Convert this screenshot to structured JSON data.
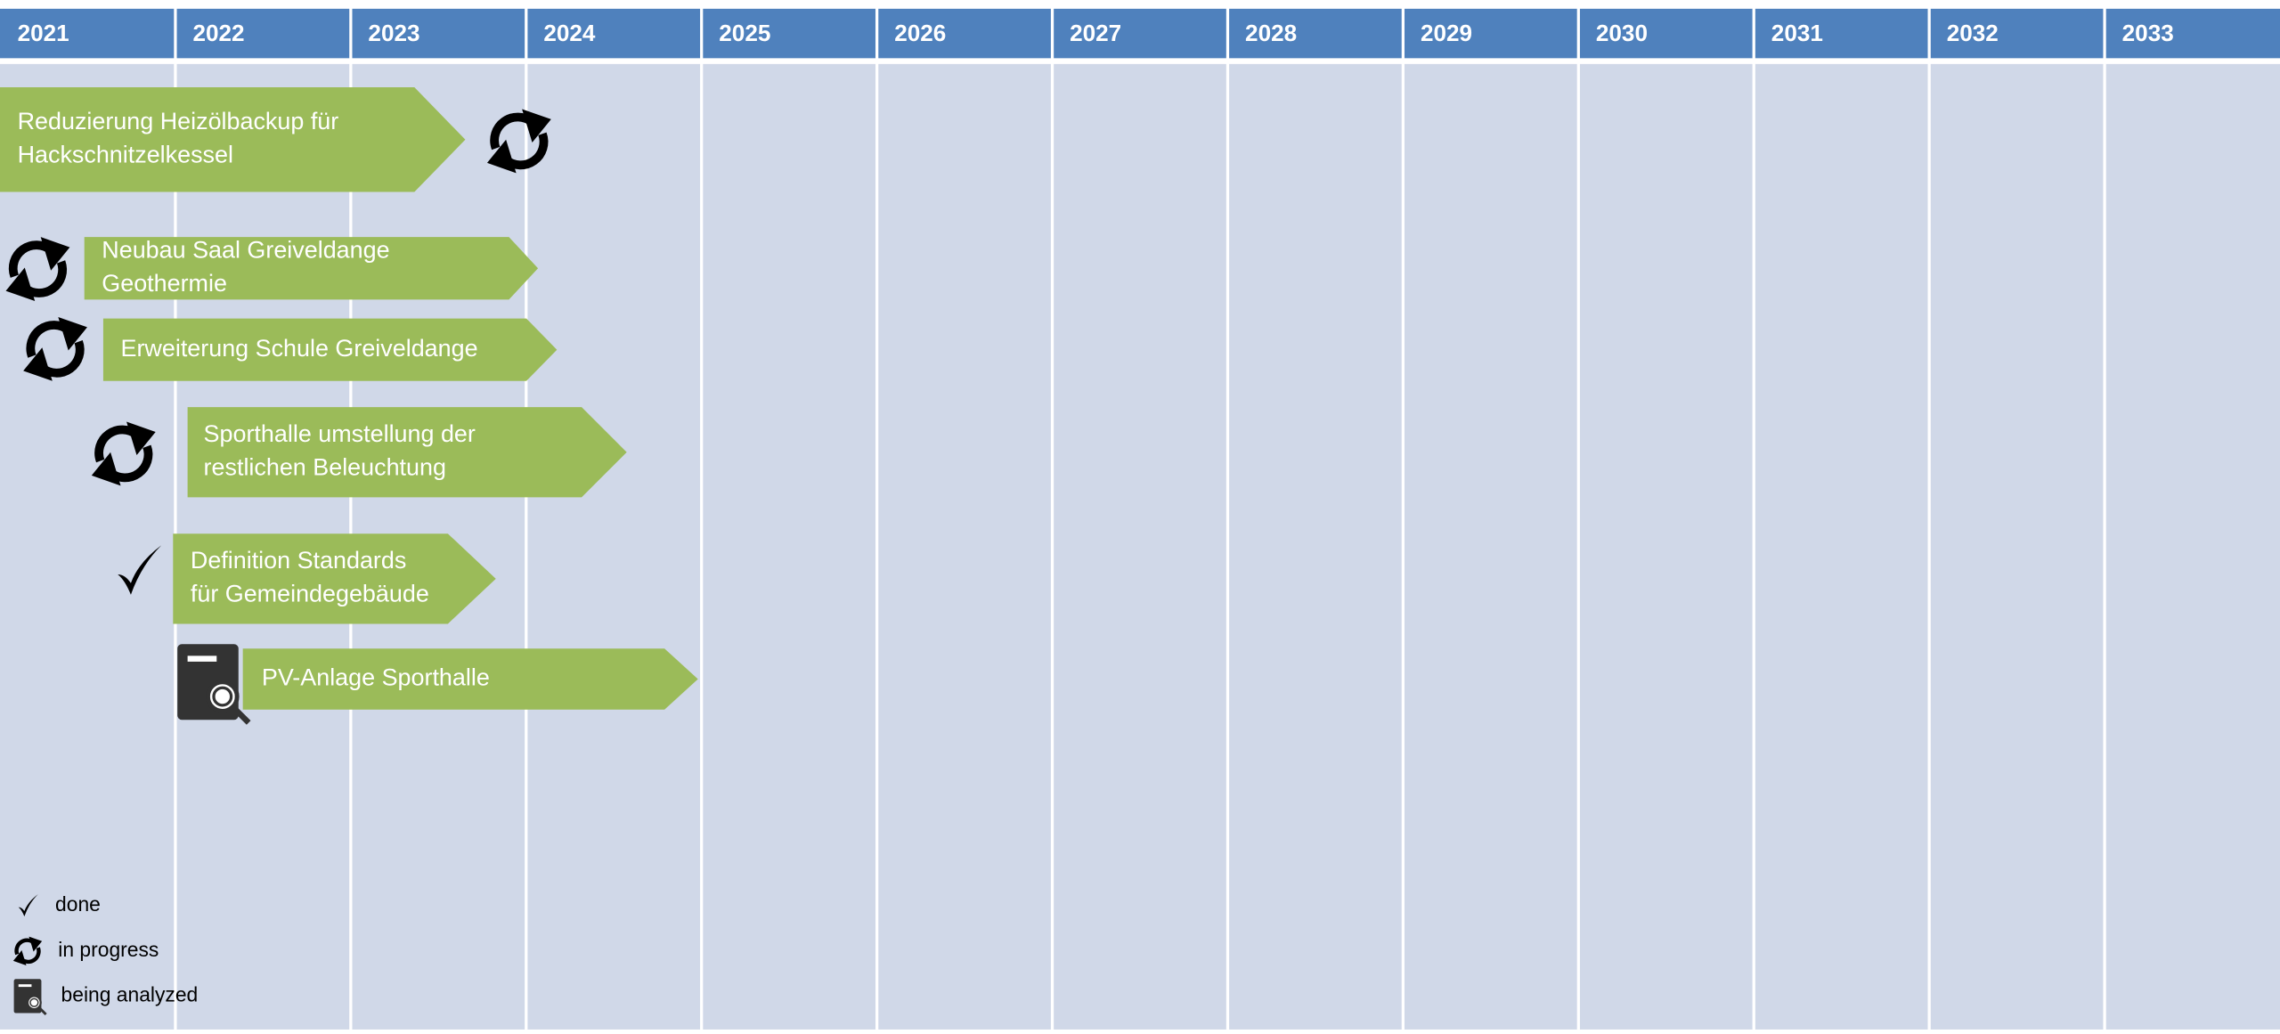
{
  "years": [
    "2021",
    "2022",
    "2023",
    "2024",
    "2025",
    "2026",
    "2027",
    "2028",
    "2029",
    "2030",
    "2031",
    "2032",
    "2033"
  ],
  "tasks": [
    {
      "lines": [
        "Reduzierung Heizölbackup für",
        "Hackschnitzelkessel"
      ]
    },
    {
      "lines": [
        "Neubau Saal Greiveldange",
        "Geothermie"
      ]
    },
    {
      "lines": [
        "Erweiterung Schule Greiveldange"
      ]
    },
    {
      "lines": [
        "Sporthalle umstellung der",
        "restlichen Beleuchtung"
      ]
    },
    {
      "lines": [
        "Definition Standards",
        "für Gemeindegebäude"
      ]
    },
    {
      "lines": [
        "PV-Anlage Sporthalle"
      ]
    }
  ],
  "legend": [
    "done",
    "in progress",
    "being analyzed"
  ]
}
